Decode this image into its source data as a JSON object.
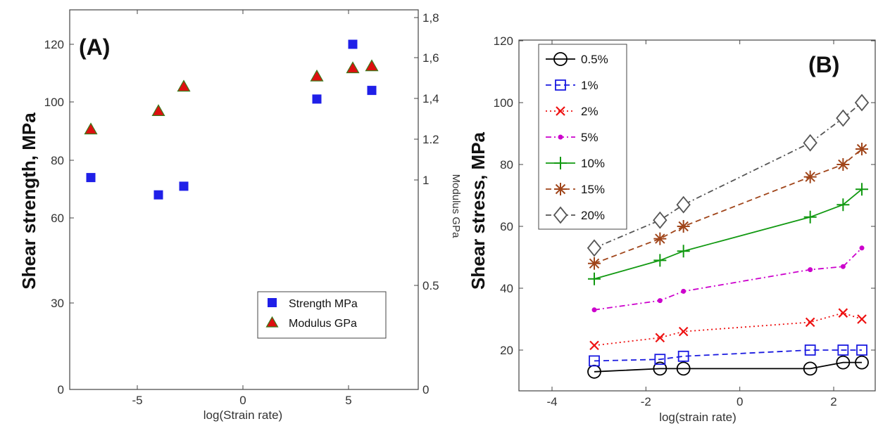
{
  "colors": {
    "blue_square": "#1f1fe8",
    "red_triangle": "#dd1010",
    "triangle_edge": "#3a7a1a",
    "s05": "#000000",
    "s1": "#1a1ae0",
    "s2": "#ee1111",
    "s5": "#cc00cc",
    "s10": "#119911",
    "s15": "#a0451a",
    "s20": "#555555"
  },
  "chart_data": [
    {
      "panel_label": "(A)",
      "type": "scatter",
      "xlabel": "log(Strain rate)",
      "ylabel": "Shear strength, MPa",
      "y2label": "Modulus GPa",
      "xlim": [
        -8.2,
        8.3
      ],
      "ylim": [
        0,
        130
      ],
      "y2lim": [
        0,
        1.8
      ],
      "x_ticks": [
        -5,
        0,
        5
      ],
      "y_ticks": [
        0,
        30,
        60,
        80,
        100,
        120
      ],
      "y2_ticks": [
        0,
        0.5,
        1,
        1.2,
        1.4,
        1.6,
        1.8
      ],
      "y2_tick_labels": [
        "0",
        "0.5",
        "1",
        "1.2",
        "1,4",
        "1,6",
        "1,8"
      ],
      "grid": false,
      "legend_position": "bottom-right",
      "series": [
        {
          "name": "Strength MPa",
          "axis": "left",
          "marker": "square",
          "x": [
            -7.2,
            -4.0,
            -2.8,
            3.5,
            5.2,
            6.1
          ],
          "y": [
            74,
            68,
            71,
            101,
            120,
            104
          ]
        },
        {
          "name": "Modulus GPa",
          "axis": "right",
          "marker": "triangle",
          "x": [
            -7.2,
            -4.0,
            -2.8,
            3.5,
            5.2,
            6.1
          ],
          "y": [
            1.25,
            1.34,
            1.46,
            1.51,
            1.55,
            1.56
          ]
        }
      ]
    },
    {
      "panel_label": "(B)",
      "type": "line",
      "xlabel": "log(strain rate)",
      "ylabel": "Shear stress, MPa",
      "xlim": [
        -4.7,
        3.0
      ],
      "ylim": [
        10,
        122
      ],
      "x_ticks": [
        -4,
        -2,
        0,
        2
      ],
      "y_ticks": [
        20,
        40,
        60,
        80,
        100,
        120
      ],
      "grid": false,
      "legend_position": "top-left",
      "x": [
        -3.1,
        -1.7,
        -1.2,
        1.5,
        2.2,
        2.6
      ],
      "series": [
        {
          "name": "0.5%",
          "style": "solid",
          "marker": "circle",
          "values": [
            13,
            14,
            14,
            14,
            16,
            16
          ]
        },
        {
          "name": "1%",
          "style": "dashed",
          "marker": "square",
          "values": [
            16.5,
            17,
            18,
            20,
            20,
            20
          ]
        },
        {
          "name": "2%",
          "style": "dotted",
          "marker": "x",
          "values": [
            21.5,
            24,
            26,
            29,
            32,
            30
          ]
        },
        {
          "name": "5%",
          "style": "dashdot",
          "marker": "dot",
          "values": [
            33,
            36,
            39,
            46,
            47,
            53
          ]
        },
        {
          "name": "10%",
          "style": "solid",
          "marker": "plus",
          "values": [
            43,
            49,
            52,
            63,
            67,
            72
          ]
        },
        {
          "name": "15%",
          "style": "dashed",
          "marker": "star",
          "values": [
            48,
            56,
            60,
            76,
            80,
            85
          ]
        },
        {
          "name": "20%",
          "style": "dashdot",
          "marker": "diamond",
          "values": [
            53,
            62,
            67,
            87,
            95,
            100
          ]
        }
      ]
    }
  ]
}
